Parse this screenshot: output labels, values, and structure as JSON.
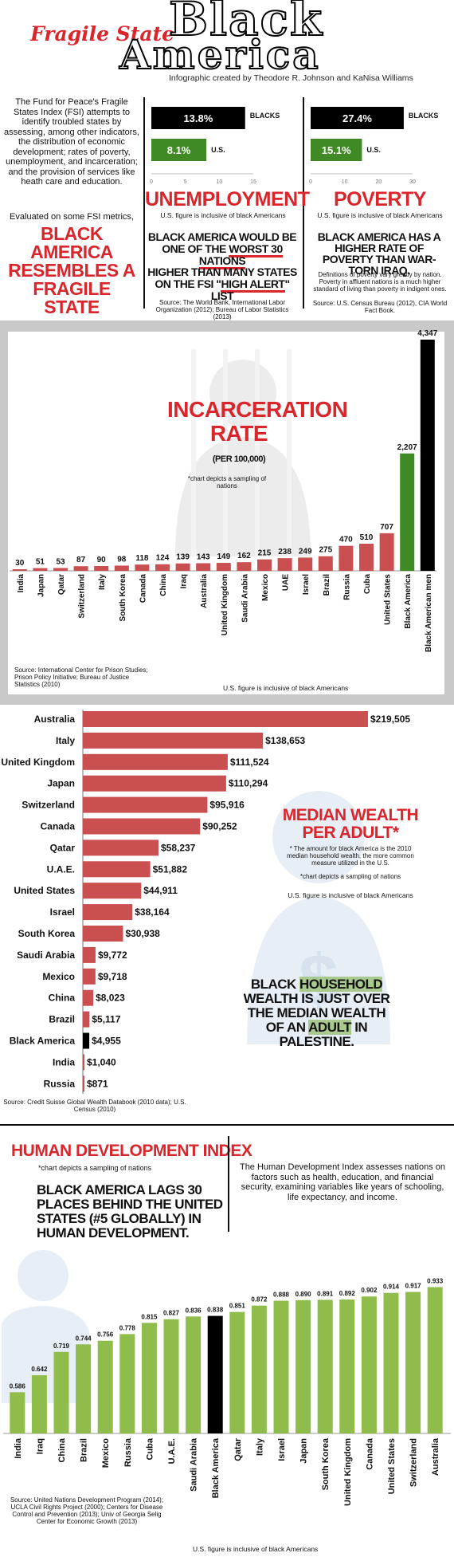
{
  "header": {
    "kicker": "Fragile State",
    "title_line1": "Black",
    "title_line2": "America",
    "credit": "Infographic created by Theodore R. Johnson and KaNisa Williams"
  },
  "intro": {
    "text": "The Fund for Peace's Fragile States Index (FSI) attempts to identify troubled states by assessing, among other indicators, the distribution of economic development; rates of poverty, unemployment, and incarceration; and the provision of services like heath care and education.",
    "evaluated": "Evaluated on some FSI metrics,",
    "headline": "BLACK AMERICA RESEMBLES A FRAGILE STATE"
  },
  "unemployment": {
    "title": "UNEMPLOYMENT",
    "note": "U.S. figure is inclusive of black Americans",
    "statement1_a": "BLACK AMERICA WOULD BE ONE OF THE ",
    "statement1_b": "WORST 30 NATIONS",
    "statement2_a": "HIGHER THAN MANY STATES ON THE FSI \"",
    "statement2_b": "HIGH ALERT",
    "statement2_c": "\" LIST",
    "source": "Source: The World Bank, International Labor Organization (2012); Bureau of Labor Statistics (2013)"
  },
  "poverty": {
    "title": "POVERTY",
    "note": "U.S. figure is inclusive of black Americans",
    "statement": "BLACK AMERICA HAS A HIGHER RATE OF POVERTY THAN WAR-TORN IRAQ.",
    "definition": "Definitions of poverty vary greatly by nation. Poverty in affluent nations is a much higher standard of living than poverty in indigent ones.",
    "source": "Source: U.S. Census Bureau (2012), CIA World Fact Book."
  },
  "incarceration": {
    "title_line1": "INCARCERATION",
    "title_line2": "RATE",
    "unit": "(PER 100,000)",
    "note": "*chart depicts a sampling of nations",
    "source": "Source: International Center for Prison Studies; Prison Policy Initiative; Bureau of Justice Statistics (2010)",
    "us_note": "U.S. figure is inclusive of black Americans"
  },
  "wealth": {
    "title_line1": "MEDIAN WEALTH",
    "title_line2": "PER ADULT*",
    "note1": "* The amount for black America is the 2010 median household wealth, the more common measure utilized in the U.S.",
    "note2": "*chart depicts a sampling of nations",
    "us_note": "U.S. figure is inclusive of black Americans",
    "statement_a": "BLACK ",
    "statement_b": "HOUSEHOLD",
    "statement_c": " WEALTH IS JUST OVER THE MEDIAN WEALTH OF AN ",
    "statement_d": "ADULT",
    "statement_e": " IN PALESTINE.",
    "source": "Source: Credit Suisse Global Wealth Databook (2010 data); U.S. Census (2010)"
  },
  "hdi": {
    "title": "HUMAN DEVELOPMENT INDEX",
    "note": "*chart depicts a sampling of nations",
    "statement": "BLACK AMERICA LAGS 30 PLACES BEHIND THE UNITED STATES (#5 GLOBALLY) IN HUMAN DEVELOPMENT.",
    "description": "The Human Development Index assesses nations on factors such as health, education, and financial security, examining variables like years of schooling, life expectancy, and income.",
    "source": "Source: United Nations Development Program (2014); UCLA Civil Rights Project (2000); Centers for Disease Control and Prevention (2013); Univ of Georgia Selig Center for Economic Growth (2013)",
    "us_note": "U.S. figure is inclusive of black Americans"
  },
  "colors": {
    "red": "#d8262c",
    "green": "#3f8a24",
    "bar_red": "#c94f50",
    "hdi_green": "#8fbc4a",
    "black": "#000000"
  },
  "chart_data": [
    {
      "type": "bar",
      "title": "UNEMPLOYMENT",
      "categories": [
        "BLACKS",
        "U.S."
      ],
      "values": [
        13.8,
        8.1
      ],
      "value_labels": [
        "13.8%",
        "8.1%"
      ],
      "xlim": [
        0,
        15
      ],
      "ticks": [
        "0",
        "5",
        "10",
        "15"
      ]
    },
    {
      "type": "bar",
      "title": "POVERTY",
      "categories": [
        "BLACKS",
        "U.S."
      ],
      "values": [
        27.4,
        15.1
      ],
      "value_labels": [
        "27.4%",
        "15.1%"
      ],
      "xlim": [
        0,
        30
      ],
      "ticks": [
        "0",
        "10",
        "20",
        "30"
      ]
    },
    {
      "type": "bar",
      "title": "INCARCERATION RATE",
      "categories": [
        "India",
        "Japan",
        "Qatar",
        "Switzerland",
        "Italy",
        "South Korea",
        "Canada",
        "China",
        "Iraq",
        "Australia",
        "United Kingdom",
        "Saudi Arabia",
        "Mexico",
        "UAE",
        "Israel",
        "Brazil",
        "Russia",
        "Cuba",
        "United States",
        "Black America",
        "Black American men"
      ],
      "values": [
        30,
        51,
        53,
        87,
        90,
        98,
        118,
        124,
        139,
        143,
        149,
        162,
        215,
        238,
        249,
        275,
        470,
        510,
        707,
        2207,
        4347
      ],
      "value_labels": [
        "30",
        "51",
        "53",
        "87",
        "90",
        "98",
        "118",
        "124",
        "139",
        "143",
        "149",
        "162",
        "215",
        "238",
        "249",
        "275",
        "470",
        "510",
        "707",
        "2,207",
        "4,347"
      ]
    },
    {
      "type": "bar",
      "title": "MEDIAN WEALTH PER ADULT*",
      "categories": [
        "Australia",
        "Italy",
        "United Kingdom",
        "Japan",
        "Switzerland",
        "Canada",
        "Qatar",
        "U.A.E.",
        "United States",
        "Israel",
        "South Korea",
        "Saudi Arabia",
        "Mexico",
        "China",
        "Brazil",
        "Black America",
        "India",
        "Russia"
      ],
      "values": [
        219505,
        138653,
        111524,
        110294,
        95916,
        90252,
        58237,
        51882,
        44911,
        38164,
        30938,
        9772,
        9718,
        8023,
        5117,
        4955,
        1040,
        871
      ],
      "value_labels": [
        "$219,505",
        "$138,653",
        "$111,524",
        "$110,294",
        "$95,916",
        "$90,252",
        "$58,237",
        "$51,882",
        "$44,911",
        "$38,164",
        "$30,938",
        "$9,772",
        "$9,718",
        "$8,023",
        "$5,117",
        "$4,955",
        "$1,040",
        "$871"
      ]
    },
    {
      "type": "bar",
      "title": "HUMAN DEVELOPMENT INDEX",
      "categories": [
        "India",
        "Iraq",
        "China",
        "Brazil",
        "Mexico",
        "Russia",
        "Cuba",
        "U.A.E.",
        "Saudi Arabia",
        "Black America",
        "Qatar",
        "Italy",
        "Israel",
        "Japan",
        "South Korea",
        "United Kingdom",
        "Canada",
        "United States",
        "Switzerland",
        "Australia"
      ],
      "values": [
        0.586,
        0.642,
        0.719,
        0.744,
        0.756,
        0.778,
        0.815,
        0.827,
        0.836,
        0.838,
        0.851,
        0.872,
        0.888,
        0.89,
        0.891,
        0.892,
        0.902,
        0.914,
        0.917,
        0.933
      ],
      "value_labels": [
        "0.586",
        "0.642",
        "0.719",
        "0.744",
        "0.756",
        "0.778",
        "0.815",
        "0.827",
        "0.836",
        "0.838",
        "0.851",
        "0.872",
        "0.888",
        "0.890",
        "0.891",
        "0.892",
        "0.902",
        "0.914",
        "0.917",
        "0.933"
      ]
    }
  ]
}
